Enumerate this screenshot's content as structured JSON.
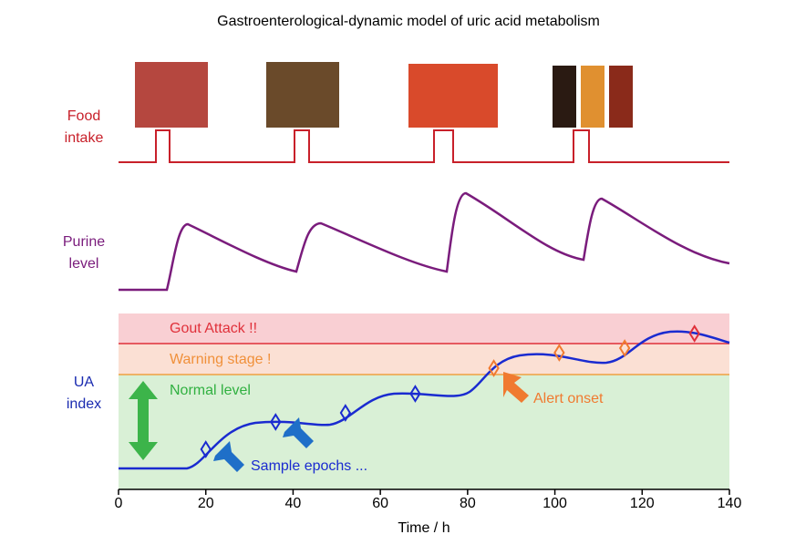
{
  "title": "Gastroenterological-dynamic model of uric acid metabolism",
  "rows": {
    "food": [
      "Food",
      "intake"
    ],
    "purine": [
      "Purine",
      "level"
    ],
    "ua": [
      "UA",
      "index"
    ]
  },
  "zones": [
    "Gout Attack !!",
    "Warning stage !",
    "Normal level"
  ],
  "annotations": [
    "Alert onset",
    "Sample epochs ..."
  ],
  "x_axis": {
    "label": "Time / h",
    "lim": [
      0,
      140
    ],
    "ticks": [
      0,
      20,
      40,
      60,
      80,
      100,
      120,
      140
    ]
  },
  "sample_epochs": [
    20,
    36,
    52,
    68,
    86,
    101,
    116,
    132
  ]
}
